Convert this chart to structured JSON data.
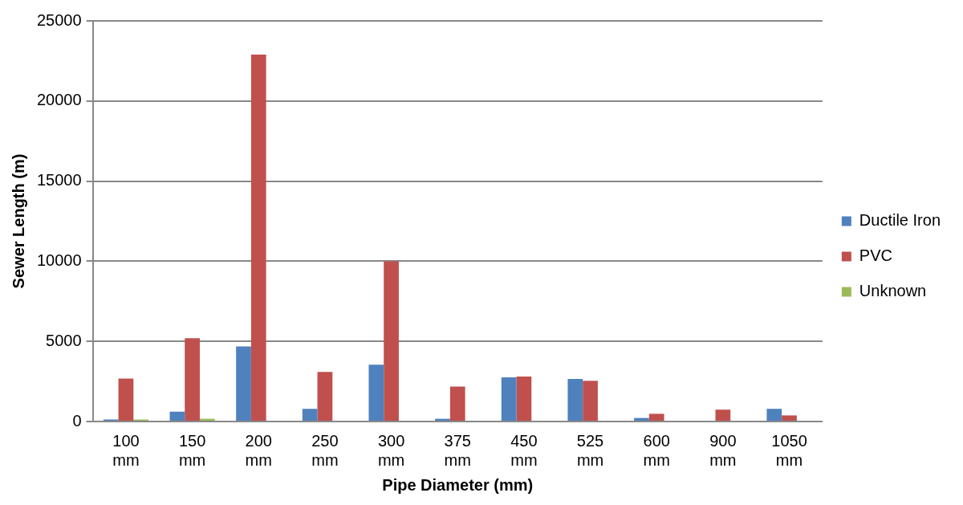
{
  "chart_data": {
    "type": "bar",
    "xlabel": "Pipe Diameter (mm)",
    "ylabel": "Sewer Length (m)",
    "categories": [
      "100 mm",
      "150 mm",
      "200 mm",
      "250 mm",
      "300 mm",
      "375 mm",
      "450 mm",
      "525 mm",
      "600 mm",
      "900 mm",
      "1050 mm"
    ],
    "series": [
      {
        "name": "Ductile Iron",
        "color": "#4f81bd",
        "values": [
          120,
          620,
          4690,
          790,
          3540,
          170,
          2750,
          2650,
          220,
          0,
          790
        ]
      },
      {
        "name": "PVC",
        "color": "#c0504d",
        "values": [
          2680,
          5200,
          22900,
          3090,
          10000,
          2180,
          2800,
          2540,
          480,
          740,
          380
        ]
      },
      {
        "name": "Unknown",
        "color": "#9bbb59",
        "values": [
          120,
          170,
          0,
          0,
          0,
          0,
          0,
          0,
          0,
          0,
          0
        ]
      }
    ],
    "ylim": [
      0,
      25000
    ],
    "yticks": [
      0,
      5000,
      10000,
      15000,
      20000,
      25000
    ],
    "grid": "y",
    "legend": "right"
  }
}
